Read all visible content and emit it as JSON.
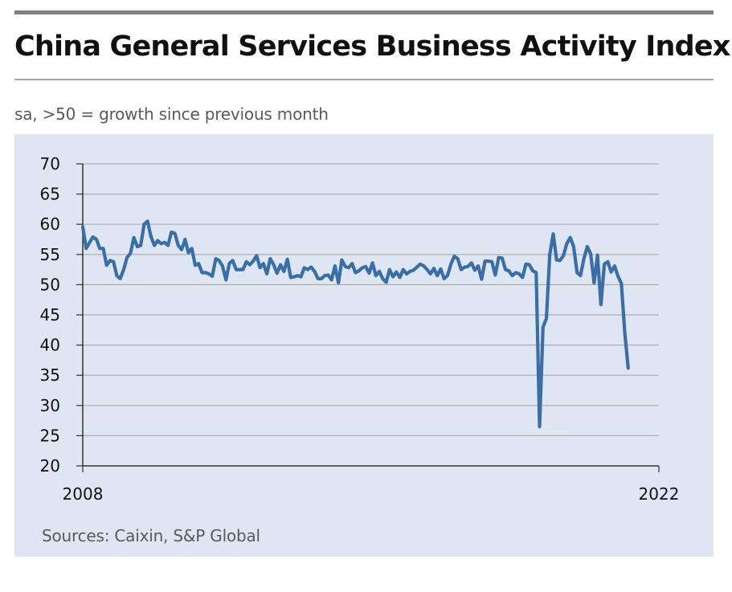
{
  "chart_data": {
    "type": "line",
    "title": "China General Services Business Activity Index",
    "subtitle": "sa, >50 = growth since previous month",
    "source": "Sources: Caixin, S&P Global",
    "xlabel": "",
    "ylabel": "",
    "ylim": [
      20,
      70
    ],
    "y_ticks": [
      70,
      65,
      60,
      55,
      50,
      45,
      40,
      35,
      30,
      25,
      20
    ],
    "x_tick_labels": [
      {
        "label": "2008",
        "x": 2007.917
      },
      {
        "label": "2022",
        "x": 2022.0
      }
    ],
    "grid": true,
    "series": [
      {
        "name": "China General Services Business Activity Index",
        "color": "#3a6ea5",
        "points": [
          [
            2007.917,
            59.6
          ],
          [
            2008.0,
            56.0
          ],
          [
            2008.083,
            57.0
          ],
          [
            2008.167,
            57.9
          ],
          [
            2008.25,
            57.5
          ],
          [
            2008.333,
            56.0
          ],
          [
            2008.417,
            56.0
          ],
          [
            2008.5,
            53.2
          ],
          [
            2008.583,
            54.0
          ],
          [
            2008.667,
            53.8
          ],
          [
            2008.75,
            51.5
          ],
          [
            2008.833,
            51.0
          ],
          [
            2008.917,
            52.5
          ],
          [
            2009.0,
            54.5
          ],
          [
            2009.083,
            55.2
          ],
          [
            2009.167,
            57.8
          ],
          [
            2009.25,
            56.3
          ],
          [
            2009.333,
            56.5
          ],
          [
            2009.417,
            60.0
          ],
          [
            2009.5,
            60.5
          ],
          [
            2009.583,
            58.0
          ],
          [
            2009.667,
            56.5
          ],
          [
            2009.75,
            57.3
          ],
          [
            2009.833,
            56.8
          ],
          [
            2009.917,
            57.0
          ],
          [
            2010.0,
            56.5
          ],
          [
            2010.083,
            58.7
          ],
          [
            2010.167,
            58.5
          ],
          [
            2010.25,
            56.5
          ],
          [
            2010.333,
            55.8
          ],
          [
            2010.417,
            57.5
          ],
          [
            2010.5,
            55.3
          ],
          [
            2010.583,
            56.0
          ],
          [
            2010.667,
            53.2
          ],
          [
            2010.75,
            53.5
          ],
          [
            2010.833,
            52.0
          ],
          [
            2010.917,
            52.0
          ],
          [
            2011.0,
            51.8
          ],
          [
            2011.083,
            51.4
          ],
          [
            2011.167,
            54.3
          ],
          [
            2011.25,
            54.0
          ],
          [
            2011.333,
            53.1
          ],
          [
            2011.417,
            50.8
          ],
          [
            2011.5,
            53.5
          ],
          [
            2011.583,
            54.0
          ],
          [
            2011.667,
            52.5
          ],
          [
            2011.75,
            52.5
          ],
          [
            2011.833,
            52.5
          ],
          [
            2011.917,
            53.8
          ],
          [
            2012.0,
            53.3
          ],
          [
            2012.083,
            53.9
          ],
          [
            2012.167,
            54.8
          ],
          [
            2012.25,
            52.8
          ],
          [
            2012.333,
            53.5
          ],
          [
            2012.417,
            51.8
          ],
          [
            2012.5,
            54.3
          ],
          [
            2012.583,
            53.3
          ],
          [
            2012.667,
            51.9
          ],
          [
            2012.75,
            53.3
          ],
          [
            2012.833,
            52.2
          ],
          [
            2012.917,
            54.2
          ],
          [
            2013.0,
            51.2
          ],
          [
            2013.083,
            51.3
          ],
          [
            2013.167,
            51.5
          ],
          [
            2013.25,
            51.3
          ],
          [
            2013.333,
            52.8
          ],
          [
            2013.417,
            52.5
          ],
          [
            2013.5,
            52.9
          ],
          [
            2013.583,
            52.2
          ],
          [
            2013.667,
            51.0
          ],
          [
            2013.75,
            51.0
          ],
          [
            2013.833,
            51.5
          ],
          [
            2013.917,
            51.6
          ],
          [
            2014.0,
            50.8
          ],
          [
            2014.083,
            53.1
          ],
          [
            2014.167,
            50.3
          ],
          [
            2014.25,
            54.1
          ],
          [
            2014.333,
            53.0
          ],
          [
            2014.417,
            52.8
          ],
          [
            2014.5,
            53.5
          ],
          [
            2014.583,
            52.0
          ],
          [
            2014.667,
            52.3
          ],
          [
            2014.75,
            52.8
          ],
          [
            2014.833,
            53.0
          ],
          [
            2014.917,
            51.9
          ],
          [
            2015.0,
            53.6
          ],
          [
            2015.083,
            51.5
          ],
          [
            2015.167,
            52.2
          ],
          [
            2015.25,
            51.0
          ],
          [
            2015.333,
            50.4
          ],
          [
            2015.417,
            52.5
          ],
          [
            2015.5,
            51.3
          ],
          [
            2015.583,
            52.1
          ],
          [
            2015.667,
            51.2
          ],
          [
            2015.75,
            52.5
          ],
          [
            2015.833,
            51.8
          ],
          [
            2015.917,
            52.2
          ],
          [
            2016.0,
            52.4
          ],
          [
            2016.083,
            52.9
          ],
          [
            2016.167,
            53.4
          ],
          [
            2016.25,
            53.1
          ],
          [
            2016.333,
            52.5
          ],
          [
            2016.417,
            51.8
          ],
          [
            2016.5,
            52.7
          ],
          [
            2016.583,
            51.5
          ],
          [
            2016.667,
            52.6
          ],
          [
            2016.75,
            51.0
          ],
          [
            2016.833,
            51.5
          ],
          [
            2016.917,
            53.4
          ],
          [
            2017.0,
            54.7
          ],
          [
            2017.083,
            54.3
          ],
          [
            2017.167,
            52.5
          ],
          [
            2017.25,
            52.9
          ],
          [
            2017.333,
            53.0
          ],
          [
            2017.417,
            53.6
          ],
          [
            2017.5,
            52.4
          ],
          [
            2017.583,
            53.1
          ],
          [
            2017.667,
            50.9
          ],
          [
            2017.75,
            53.9
          ],
          [
            2017.833,
            53.9
          ],
          [
            2017.917,
            53.8
          ],
          [
            2018.0,
            51.6
          ],
          [
            2018.083,
            54.5
          ],
          [
            2018.167,
            54.4
          ],
          [
            2018.25,
            52.5
          ],
          [
            2018.333,
            52.3
          ],
          [
            2018.417,
            51.5
          ],
          [
            2018.5,
            52.0
          ],
          [
            2018.583,
            51.8
          ],
          [
            2018.667,
            51.2
          ],
          [
            2018.75,
            53.4
          ],
          [
            2018.833,
            53.3
          ],
          [
            2018.917,
            52.3
          ],
          [
            2019.0,
            52.0
          ],
          [
            2019.083,
            26.5
          ],
          [
            2019.167,
            43.0
          ],
          [
            2019.25,
            44.4
          ],
          [
            2019.333,
            55.0
          ],
          [
            2019.417,
            58.4
          ],
          [
            2019.5,
            54.1
          ],
          [
            2019.583,
            54.0
          ],
          [
            2019.667,
            54.8
          ],
          [
            2019.75,
            56.8
          ],
          [
            2019.833,
            57.8
          ],
          [
            2019.917,
            56.3
          ],
          [
            2020.0,
            52.0
          ],
          [
            2020.083,
            51.5
          ],
          [
            2020.167,
            54.3
          ],
          [
            2020.25,
            56.3
          ],
          [
            2020.333,
            55.1
          ],
          [
            2020.417,
            50.3
          ],
          [
            2020.5,
            54.9
          ],
          [
            2020.583,
            46.7
          ],
          [
            2020.667,
            53.4
          ],
          [
            2020.75,
            53.8
          ],
          [
            2020.833,
            52.1
          ],
          [
            2020.917,
            53.1
          ],
          [
            2021.0,
            51.4
          ],
          [
            2021.083,
            50.2
          ],
          [
            2021.167,
            42.0
          ],
          [
            2021.25,
            36.2
          ]
        ]
      }
    ]
  }
}
